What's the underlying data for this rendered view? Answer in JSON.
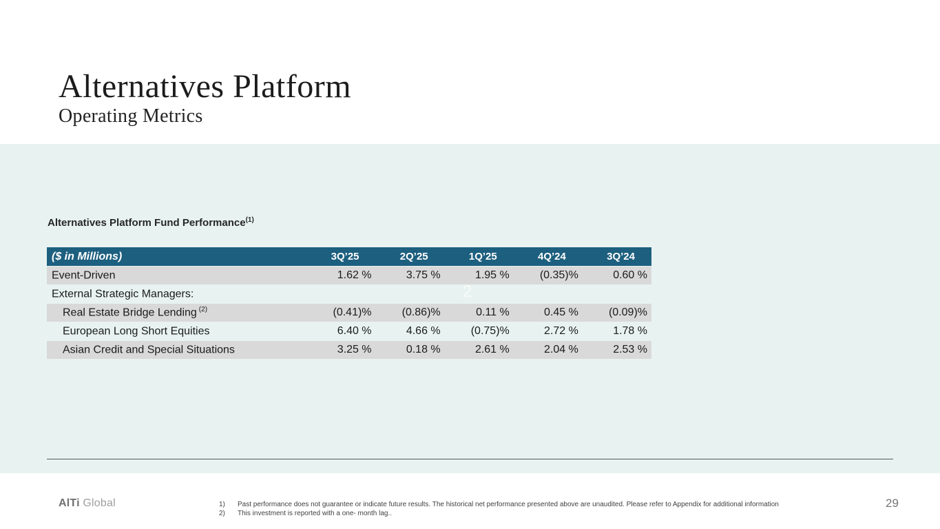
{
  "slide": {
    "title": "Alternatives Platform",
    "subtitle": "Operating Metrics"
  },
  "watermark": "2",
  "table": {
    "title": "Alternatives Platform Fund Performance",
    "title_superscript": "(1)",
    "header": {
      "label": "($ in Millions)",
      "columns": [
        "3Q’25",
        "2Q’25",
        "1Q’25",
        "4Q’24",
        "3Q’24"
      ]
    },
    "rows": [
      {
        "label": "Event-Driven",
        "superscript": "",
        "values": [
          "1.62 %",
          "3.75 %",
          "1.95 %",
          "(0.35)%",
          "0.60 %"
        ]
      },
      {
        "label": "External Strategic Managers:",
        "superscript": "",
        "values": [
          "",
          "",
          "",
          "",
          ""
        ]
      },
      {
        "label": "Real Estate Bridge Lending",
        "superscript": "(2)",
        "values": [
          "(0.41)%",
          "(0.86)%",
          "0.11 %",
          "0.45 %",
          "(0.09)%"
        ]
      },
      {
        "label": "European Long Short Equities",
        "superscript": "",
        "values": [
          "6.40 %",
          "4.66 %",
          "(0.75)%",
          "2.72 %",
          "1.78 %"
        ]
      },
      {
        "label": "Asian Credit and Special Situations",
        "superscript": "",
        "values": [
          "3.25 %",
          "0.18 %",
          "2.61 %",
          "2.04 %",
          "2.53 %"
        ]
      }
    ]
  },
  "footer": {
    "logo_primary": "AlTi",
    "logo_secondary": "Global",
    "footnotes": [
      {
        "num": "1)",
        "text": "Past performance does not guarantee or indicate future results. The historical net performance presented above are unaudited. Please refer to Appendix for additional information"
      },
      {
        "num": "2)",
        "text": "This investment is reported with a one- month lag.."
      }
    ],
    "page_number": "29"
  },
  "colors": {
    "header_bg": "#1d5f7f",
    "row_shaded": "#d9d9d9",
    "band_bg": "#e8f3f1"
  }
}
